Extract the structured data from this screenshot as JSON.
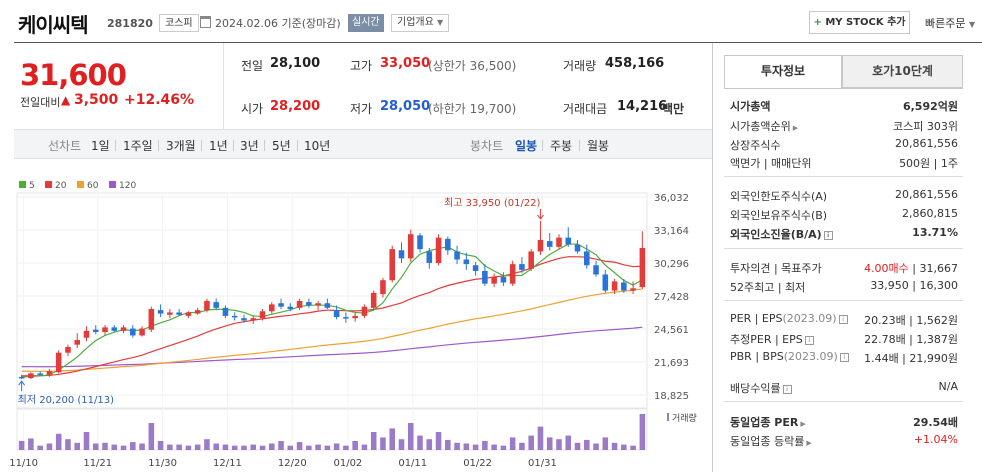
{
  "header": {
    "stock_name": "케이씨텍",
    "stock_code": "281820",
    "market": "코스피",
    "date_text": "2024.02.06  기준(장마감)",
    "realtime": "실시간",
    "company_info": "기업개요",
    "mystock_label": "MY STOCK 추가",
    "quick_order": "빠른주문"
  },
  "price": {
    "current": "31,600",
    "change_label": "전일대비",
    "change_amount": "3,500",
    "change_percent": "+12.46%"
  },
  "quotes": {
    "prev_close_label": "전일",
    "prev_close": "28,100",
    "high_label": "고가",
    "high": "33,050",
    "upper_limit": "(상한가 36,500)",
    "volume_label": "거래량",
    "volume": "458,166",
    "open_label": "시가",
    "open": "28,200",
    "low_label": "저가",
    "low": "28,050",
    "lower_limit": "(하한가 19,700)",
    "amount_label": "거래대금",
    "amount": "14,216",
    "amount_unit": "백만"
  },
  "toolbar": {
    "line_chart_label": "선차트",
    "periods": [
      "1일",
      "1주일",
      "3개월",
      "1년",
      "3년",
      "5년",
      "10년"
    ],
    "candle_label": "봉차트",
    "candle_periods": [
      "일봉",
      "주봉",
      "월봉"
    ],
    "active_candle": "일봉"
  },
  "legend": [
    {
      "name": "5",
      "color": "#4caf3a"
    },
    {
      "name": "20",
      "color": "#e33b3b"
    },
    {
      "name": "60",
      "color": "#f0a030"
    },
    {
      "name": "120",
      "color": "#9b59d0"
    }
  ],
  "chart_data": {
    "type": "candlestick",
    "y_ticks": [
      "36,032",
      "33,164",
      "30,296",
      "27,428",
      "24,561",
      "21,693",
      "18,825"
    ],
    "ylim": [
      18825,
      36032
    ],
    "x_ticks": [
      "11/10",
      "11/21",
      "11/30",
      "12/11",
      "12/20",
      "01/02",
      "01/11",
      "01/22",
      "01/31"
    ],
    "max_annotation": "최고 33,950 (01/22)",
    "min_annotation": "최저 20,200 (11/13)",
    "volume_label": "거래량",
    "colors": {
      "up": "#e33b3b",
      "down": "#2a74d8"
    },
    "candles": [
      {
        "o": 20400,
        "h": 20600,
        "l": 20200,
        "c": 20300
      },
      {
        "o": 20300,
        "h": 20800,
        "l": 20200,
        "c": 20700
      },
      {
        "o": 20700,
        "h": 20900,
        "l": 20500,
        "c": 20600
      },
      {
        "o": 20600,
        "h": 21100,
        "l": 20400,
        "c": 20900
      },
      {
        "o": 20800,
        "h": 22700,
        "l": 20700,
        "c": 22500
      },
      {
        "o": 22500,
        "h": 23200,
        "l": 22200,
        "c": 23000
      },
      {
        "o": 23200,
        "h": 24200,
        "l": 22900,
        "c": 23600
      },
      {
        "o": 23800,
        "h": 24800,
        "l": 23500,
        "c": 24400
      },
      {
        "o": 24500,
        "h": 24900,
        "l": 24100,
        "c": 24300
      },
      {
        "o": 24300,
        "h": 24900,
        "l": 24000,
        "c": 24700
      },
      {
        "o": 24700,
        "h": 24900,
        "l": 24300,
        "c": 24400
      },
      {
        "o": 24400,
        "h": 24900,
        "l": 24200,
        "c": 24700
      },
      {
        "o": 24600,
        "h": 24900,
        "l": 23800,
        "c": 24000
      },
      {
        "o": 24000,
        "h": 24800,
        "l": 23900,
        "c": 24600
      },
      {
        "o": 24500,
        "h": 26500,
        "l": 24300,
        "c": 26300
      },
      {
        "o": 26200,
        "h": 26700,
        "l": 25600,
        "c": 25900
      },
      {
        "o": 25800,
        "h": 26300,
        "l": 25500,
        "c": 26000
      },
      {
        "o": 26000,
        "h": 26300,
        "l": 25700,
        "c": 25800
      },
      {
        "o": 25700,
        "h": 26100,
        "l": 25500,
        "c": 26000
      },
      {
        "o": 25900,
        "h": 26400,
        "l": 25800,
        "c": 26200
      },
      {
        "o": 26200,
        "h": 27200,
        "l": 26000,
        "c": 27000
      },
      {
        "o": 26900,
        "h": 27200,
        "l": 26200,
        "c": 26400
      },
      {
        "o": 26400,
        "h": 26600,
        "l": 25500,
        "c": 25700
      },
      {
        "o": 25700,
        "h": 26000,
        "l": 25300,
        "c": 25600
      },
      {
        "o": 25500,
        "h": 25800,
        "l": 25100,
        "c": 25300
      },
      {
        "o": 25300,
        "h": 25700,
        "l": 25000,
        "c": 25500
      },
      {
        "o": 25500,
        "h": 26300,
        "l": 25300,
        "c": 26100
      },
      {
        "o": 26100,
        "h": 26900,
        "l": 25900,
        "c": 26700
      },
      {
        "o": 26800,
        "h": 27200,
        "l": 26300,
        "c": 26500
      },
      {
        "o": 26500,
        "h": 26800,
        "l": 26100,
        "c": 26300
      },
      {
        "o": 26400,
        "h": 27200,
        "l": 26200,
        "c": 27000
      },
      {
        "o": 26900,
        "h": 27200,
        "l": 26400,
        "c": 26600
      },
      {
        "o": 26600,
        "h": 27000,
        "l": 26200,
        "c": 26800
      },
      {
        "o": 26800,
        "h": 27200,
        "l": 26300,
        "c": 26400
      },
      {
        "o": 26200,
        "h": 26600,
        "l": 25400,
        "c": 25600
      },
      {
        "o": 25600,
        "h": 26000,
        "l": 25100,
        "c": 25500
      },
      {
        "o": 25500,
        "h": 26000,
        "l": 25200,
        "c": 25700
      },
      {
        "o": 25700,
        "h": 26700,
        "l": 25500,
        "c": 26500
      },
      {
        "o": 26400,
        "h": 27900,
        "l": 26200,
        "c": 27700
      },
      {
        "o": 27600,
        "h": 29000,
        "l": 27300,
        "c": 28800
      },
      {
        "o": 28800,
        "h": 31800,
        "l": 28600,
        "c": 31500
      },
      {
        "o": 31400,
        "h": 32100,
        "l": 30300,
        "c": 30700
      },
      {
        "o": 30700,
        "h": 33200,
        "l": 30400,
        "c": 32800
      },
      {
        "o": 32700,
        "h": 32900,
        "l": 31200,
        "c": 31500
      },
      {
        "o": 31300,
        "h": 31600,
        "l": 29800,
        "c": 30300
      },
      {
        "o": 30300,
        "h": 32800,
        "l": 30100,
        "c": 32500
      },
      {
        "o": 32400,
        "h": 32600,
        "l": 31000,
        "c": 31400
      },
      {
        "o": 31300,
        "h": 31800,
        "l": 30200,
        "c": 30600
      },
      {
        "o": 30600,
        "h": 31200,
        "l": 29700,
        "c": 30200
      },
      {
        "o": 30100,
        "h": 30400,
        "l": 29200,
        "c": 29600
      },
      {
        "o": 29600,
        "h": 30200,
        "l": 28300,
        "c": 28500
      },
      {
        "o": 28500,
        "h": 29400,
        "l": 28200,
        "c": 29100
      },
      {
        "o": 29100,
        "h": 29500,
        "l": 28300,
        "c": 28600
      },
      {
        "o": 28500,
        "h": 30500,
        "l": 28300,
        "c": 30200
      },
      {
        "o": 30200,
        "h": 30800,
        "l": 29400,
        "c": 29700
      },
      {
        "o": 29800,
        "h": 31500,
        "l": 29600,
        "c": 31300
      },
      {
        "o": 31300,
        "h": 33950,
        "l": 31000,
        "c": 32300
      },
      {
        "o": 32200,
        "h": 32900,
        "l": 31400,
        "c": 31700
      },
      {
        "o": 31700,
        "h": 32800,
        "l": 31500,
        "c": 32500
      },
      {
        "o": 32500,
        "h": 33400,
        "l": 31700,
        "c": 31900
      },
      {
        "o": 31900,
        "h": 32300,
        "l": 31100,
        "c": 31300
      },
      {
        "o": 31300,
        "h": 31900,
        "l": 29800,
        "c": 30100
      },
      {
        "o": 30100,
        "h": 30500,
        "l": 29100,
        "c": 29300
      },
      {
        "o": 29300,
        "h": 29700,
        "l": 27700,
        "c": 27900
      },
      {
        "o": 27900,
        "h": 28900,
        "l": 27600,
        "c": 28700
      },
      {
        "o": 28600,
        "h": 28900,
        "l": 27700,
        "c": 27900
      },
      {
        "o": 27900,
        "h": 28700,
        "l": 27600,
        "c": 28100
      },
      {
        "o": 28200,
        "h": 33050,
        "l": 28050,
        "c": 31600
      }
    ],
    "volumes": [
      0.25,
      0.32,
      0.12,
      0.18,
      0.45,
      0.3,
      0.2,
      0.5,
      0.18,
      0.2,
      0.15,
      0.12,
      0.22,
      0.18,
      0.75,
      0.25,
      0.15,
      0.15,
      0.12,
      0.15,
      0.3,
      0.18,
      0.15,
      0.12,
      0.12,
      0.15,
      0.12,
      0.18,
      0.25,
      0.12,
      0.22,
      0.12,
      0.15,
      0.12,
      0.18,
      0.12,
      0.25,
      0.15,
      0.5,
      0.35,
      0.6,
      0.3,
      0.75,
      0.4,
      0.3,
      0.5,
      0.28,
      0.2,
      0.18,
      0.15,
      0.25,
      0.15,
      0.12,
      0.35,
      0.2,
      0.4,
      0.65,
      0.35,
      0.3,
      0.4,
      0.2,
      0.28,
      0.18,
      0.35,
      0.2,
      0.15,
      0.12,
      1.0
    ]
  },
  "right_panel": {
    "tabs": [
      "투자정보",
      "호가10단계"
    ],
    "rows": [
      {
        "label": "시가총액",
        "value": "6,592억원",
        "bold": true
      },
      {
        "label": "시가총액순위",
        "value": "코스피 303위",
        "arrow": true
      },
      {
        "label": "상장주식수",
        "value": "20,861,556"
      },
      {
        "label": "액면가 | 매매단위",
        "value": "500원 | 1주"
      },
      {
        "label": "외국인한도주식수(A)",
        "value": "20,861,556"
      },
      {
        "label": "외국인보유주식수(B)",
        "value": "2,860,815"
      },
      {
        "label": "외국인소진율(B/A)",
        "value": "13.71%",
        "bold": true,
        "info": true
      },
      {
        "label": "투자의견 | 목표주가",
        "value_red": "4.00매수",
        "value": "| 31,667"
      },
      {
        "label": "52주최고 | 최저",
        "value": "33,950 | 16,300"
      },
      {
        "label": "PER | EPS",
        "sub": "(2023.09)",
        "value": "20.23배 | 1,562원",
        "info": true
      },
      {
        "label": "추정PER | EPS",
        "value": "22.78배 | 1,387원",
        "info": true
      },
      {
        "label": "PBR | BPS",
        "sub": "(2023.09)",
        "value": "1.44배 | 21,990원",
        "info": true
      },
      {
        "label": "배당수익률",
        "value": "N/A",
        "info": true
      },
      {
        "label": "동일업종 PER",
        "value": "29.54배",
        "bold": true,
        "arrow": true
      },
      {
        "label": "동일업종 등락률",
        "value": "+1.04%",
        "red": true,
        "arrow": true
      }
    ]
  }
}
